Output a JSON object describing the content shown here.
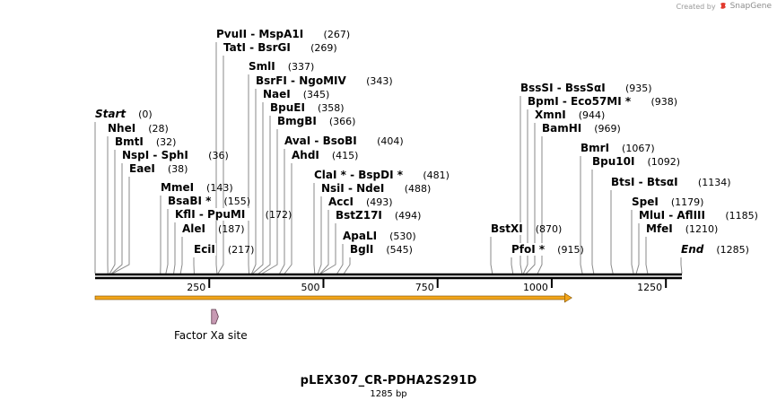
{
  "credit": {
    "prefix": "Created by",
    "brand": "SnapGene"
  },
  "sequence": {
    "name": "pLEX307_CR-PDHA2S291D",
    "length_label": "1285 bp",
    "length": 1285
  },
  "ruler": {
    "ticks": [
      250,
      500,
      750,
      1000,
      1250
    ],
    "tick_labels": [
      "250",
      "500",
      "750",
      "1000",
      "1250"
    ]
  },
  "sites": [
    {
      "name": "Start",
      "pos": 0,
      "pos_label": "(0)",
      "italic": true
    },
    {
      "name": "NheI",
      "pos": 28,
      "pos_label": "(28)"
    },
    {
      "name": "BmtI",
      "pos": 32,
      "pos_label": "(32)"
    },
    {
      "name": "NspI  -  SphI",
      "pos": 36,
      "pos_label": "(36)"
    },
    {
      "name": "EaeI",
      "pos": 38,
      "pos_label": "(38)"
    },
    {
      "name": "MmeI",
      "pos": 143,
      "pos_label": "(143)"
    },
    {
      "name": "BsaBI *",
      "pos": 155,
      "pos_label": "(155)"
    },
    {
      "name": "KflI  -  PpuMI",
      "pos": 172,
      "pos_label": "(172)"
    },
    {
      "name": "AleI",
      "pos": 187,
      "pos_label": "(187)"
    },
    {
      "name": "EciI",
      "pos": 217,
      "pos_label": "(217)"
    },
    {
      "name": "PvuII  -  MspA1I",
      "pos": 267,
      "pos_label": "(267)"
    },
    {
      "name": "TatI  -  BsrGI",
      "pos": 269,
      "pos_label": "(269)"
    },
    {
      "name": "SmlI",
      "pos": 337,
      "pos_label": "(337)"
    },
    {
      "name": "BsrFI  -  NgoMIV",
      "pos": 343,
      "pos_label": "(343)"
    },
    {
      "name": "NaeI",
      "pos": 345,
      "pos_label": "(345)"
    },
    {
      "name": "BpuEI",
      "pos": 358,
      "pos_label": "(358)"
    },
    {
      "name": "BmgBI",
      "pos": 366,
      "pos_label": "(366)"
    },
    {
      "name": "AvaI  -  BsoBI",
      "pos": 404,
      "pos_label": "(404)"
    },
    {
      "name": "AhdI",
      "pos": 415,
      "pos_label": "(415)"
    },
    {
      "name": "ClaI *  -  BspDI *",
      "pos": 481,
      "pos_label": "(481)"
    },
    {
      "name": "NsiI  -  NdeI",
      "pos": 488,
      "pos_label": "(488)"
    },
    {
      "name": "AccI",
      "pos": 493,
      "pos_label": "(493)"
    },
    {
      "name": "BstZ17I",
      "pos": 494,
      "pos_label": "(494)"
    },
    {
      "name": "ApaLI",
      "pos": 530,
      "pos_label": "(530)"
    },
    {
      "name": "BglI",
      "pos": 545,
      "pos_label": "(545)"
    },
    {
      "name": "BstXI",
      "pos": 870,
      "pos_label": "(870)"
    },
    {
      "name": "PfoI *",
      "pos": 915,
      "pos_label": "(915)"
    },
    {
      "name": "BssSI  -  BssSαI",
      "pos": 935,
      "pos_label": "(935)"
    },
    {
      "name": "BpmI  -  Eco57MI *",
      "pos": 938,
      "pos_label": "(938)"
    },
    {
      "name": "XmnI",
      "pos": 944,
      "pos_label": "(944)"
    },
    {
      "name": "BamHI",
      "pos": 969,
      "pos_label": "(969)"
    },
    {
      "name": "BmrI",
      "pos": 1067,
      "pos_label": "(1067)"
    },
    {
      "name": "Bpu10I",
      "pos": 1092,
      "pos_label": "(1092)"
    },
    {
      "name": "BtsI  -  BtsαI",
      "pos": 1134,
      "pos_label": "(1134)"
    },
    {
      "name": "SpeI",
      "pos": 1179,
      "pos_label": "(1179)"
    },
    {
      "name": "MluI  -  AflIII",
      "pos": 1185,
      "pos_label": "(1185)"
    },
    {
      "name": "MfeI",
      "pos": 1210,
      "pos_label": "(1210)"
    },
    {
      "name": "End",
      "pos": 1285,
      "pos_label": "(1285)",
      "italic": true
    }
  ],
  "orf": {
    "start": 0,
    "end": 1040,
    "color": "#f2a51a"
  },
  "features": [
    {
      "name": "Factor Xa site",
      "start": 255,
      "end": 266,
      "color": "#c79ab3"
    }
  ],
  "colors": {
    "backbone": "#000000",
    "leader": "#8a8a8a"
  }
}
